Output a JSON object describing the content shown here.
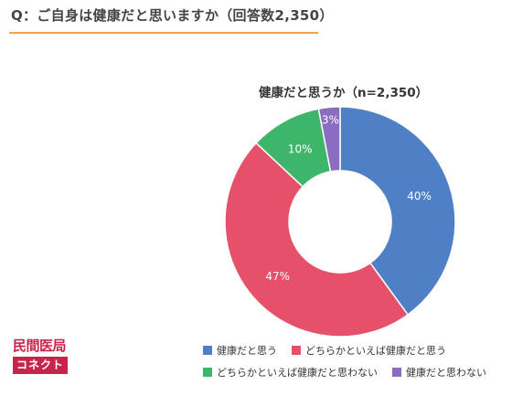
{
  "header": {
    "question": "Q：ご自身は健康だと思いますか（回答数2,350）"
  },
  "logo": {
    "top_text": "民間医局",
    "bottom_text": "コネクト",
    "accent": "#c8234a"
  },
  "colors": {
    "underline": "#f0a24e",
    "series": [
      "#4f80c6",
      "#e65069",
      "#3db66a",
      "#8a6cc0"
    ]
  },
  "chart_data": {
    "type": "pie",
    "donut": true,
    "title": "健康だと思うか（n=2,350）",
    "categories": [
      "健康だと思う",
      "どちらかといえば健康だと思う",
      "どちらかといえば健康だと思わない",
      "健康だと思わない"
    ],
    "values": [
      40,
      47,
      10,
      3
    ],
    "labels": [
      "40%",
      "47%",
      "10%",
      "3%"
    ],
    "start": "top",
    "direction": "clockwise"
  }
}
